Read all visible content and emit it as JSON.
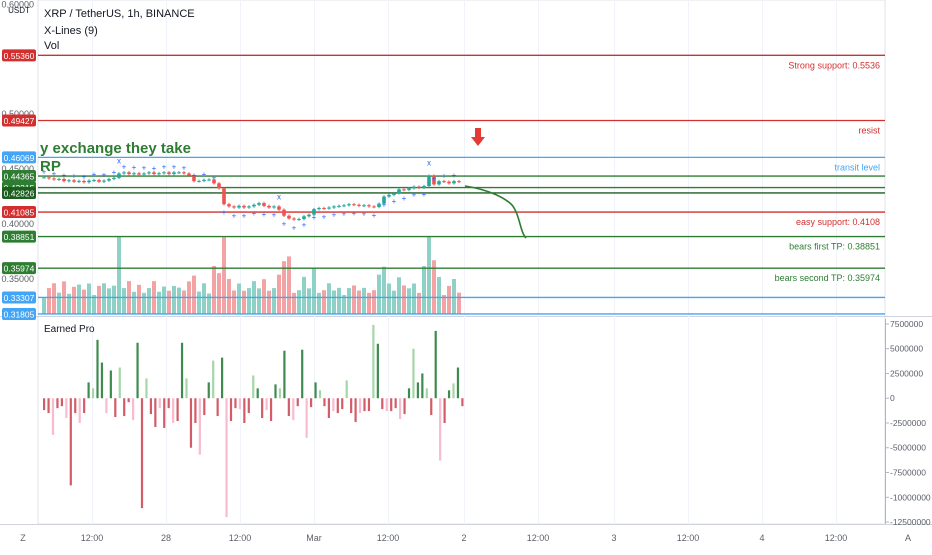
{
  "header": {
    "symbol_line": "XRP / TetherUS, 1h, BINANCE",
    "indicator_1": "X-Lines (9)",
    "indicator_2": "Vol",
    "overlay_text_1": "y exchange they take",
    "overlay_text_2": "RP",
    "currency_label": "USDT"
  },
  "colors": {
    "up": "#26a69a",
    "down": "#ef5350",
    "up_dark": "#3f8b4f",
    "down_dark": "#d25c68",
    "vol_up": "#8fd1c6",
    "vol_down": "#f3a3a3",
    "red_line": "#d32f2f",
    "green_line": "#2e7d32",
    "blue_line": "#42a5f5",
    "axis_text": "#5d606b"
  },
  "chart_data": [
    {
      "type": "candlestick",
      "title": "XRP / TetherUS, 1h, BINANCE",
      "y_axis_labels": [
        "0.60000",
        "0.50000",
        "0.45000",
        "0.40000",
        "0.35000"
      ],
      "x_axis_labels": [
        "12:00",
        "28",
        "12:00",
        "Mar",
        "12:00",
        "2",
        "12:00",
        "3",
        "12:00",
        "4",
        "12:00"
      ],
      "ylim": [
        0.318,
        0.604
      ],
      "price_levels": [
        {
          "price": 0.5536,
          "label": "0.55360",
          "color": "#d32f2f",
          "text": "Strong support: 0.5536"
        },
        {
          "price": 0.49427,
          "label": "0.49427",
          "color": "#d32f2f",
          "text": "resist"
        },
        {
          "price": 0.46069,
          "label": "0.46069",
          "color": "#42a5f5",
          "text": "transit level"
        },
        {
          "price": 0.44365,
          "label": "0.44365",
          "color": "#2e7d32",
          "text": ""
        },
        {
          "price": 0.43315,
          "label": "0.43315",
          "color": "#2e7d32",
          "text": ""
        },
        {
          "price": 0.42826,
          "label": "0.42826",
          "color": "#1b5e20",
          "text": ""
        },
        {
          "price": 0.41085,
          "label": "0.41085",
          "color": "#d32f2f",
          "text": "easy support: 0.4108"
        },
        {
          "price": 0.38851,
          "label": "0.38851",
          "color": "#2e7d32",
          "text": "bears first TP: 0.38851"
        },
        {
          "price": 0.35974,
          "label": "0.35974",
          "color": "#2e7d32",
          "text": "bears second TP: 0.35974"
        },
        {
          "price": 0.33307,
          "label": "0.33307",
          "color": "#42a5f5",
          "text": ""
        },
        {
          "price": 0.31805,
          "label": "0.31805",
          "color": "#42a5f5",
          "text": ""
        }
      ],
      "series": [
        {
          "name": "",
          "close": [
            0.4425,
            0.4415,
            0.4405,
            0.441,
            0.439,
            0.4398,
            0.4385,
            0.4392,
            0.438,
            0.4395,
            0.44,
            0.4385,
            0.4395,
            0.441,
            0.442,
            0.446,
            0.447,
            0.4455,
            0.4462,
            0.445,
            0.446,
            0.447,
            0.4455,
            0.4462,
            0.447,
            0.4455,
            0.447,
            0.447,
            0.446,
            0.444,
            0.439,
            0.4392,
            0.4402,
            0.4405,
            0.437,
            0.4325,
            0.418,
            0.416,
            0.415,
            0.4165,
            0.415,
            0.416,
            0.4175,
            0.419,
            0.4165,
            0.415,
            0.416,
            0.413,
            0.4075,
            0.405,
            0.404,
            0.4045,
            0.407,
            0.4085,
            0.4135,
            0.4145,
            0.414,
            0.415,
            0.416,
            0.4165,
            0.417,
            0.418,
            0.4175,
            0.4165,
            0.417,
            0.416,
            0.4155,
            0.4185,
            0.425,
            0.4265,
            0.428,
            0.4315,
            0.431,
            0.4325,
            0.434,
            0.433,
            0.4345,
            0.444,
            0.436,
            0.439,
            0.4385,
            0.437,
            0.439,
            0.4385
          ]
        }
      ]
    },
    {
      "type": "bar",
      "title": "Earned Pro",
      "y_axis_labels": [
        "7500000",
        "5000000",
        "2500000",
        "0",
        "-2500000",
        "-5000000",
        "-7500000",
        "-10000000",
        "-12500000"
      ],
      "ylim": [
        -12700000,
        8000000
      ],
      "series": [
        {
          "name": "",
          "values": [
            -1200000,
            -1500000,
            -3700000,
            -1000000,
            -800000,
            -2000000,
            -8800000,
            -1500000,
            -2500000,
            -1500000,
            1600000,
            1000000,
            5900000,
            3600000,
            -1500000,
            2800000,
            -1900000,
            3100000,
            -1800000,
            -400000,
            -2200000,
            5600000,
            -11100000,
            2000000,
            -1600000,
            -2900000,
            -1000000,
            -3000000,
            -1000000,
            -2500000,
            -2300000,
            5600000,
            2000000,
            -5000000,
            -2500000,
            -5700000,
            -1700000,
            1600000,
            3800000,
            -1800000,
            4100000,
            -12000000,
            -2300000,
            -1000000,
            -1100000,
            -2500000,
            -1500000,
            2300000,
            1000000,
            -2000000,
            -1200000,
            -2300000,
            1400000,
            1000000,
            4800000,
            -1800000,
            -2200000,
            -800000,
            4900000,
            -4000000,
            -900000,
            1600000,
            800000,
            -800000,
            -2000000,
            -1300000,
            -1500000,
            -1100000,
            1800000,
            -1500000,
            -2400000,
            -1500000,
            -1300000,
            -1300000,
            7400000,
            5500000,
            -1100000,
            -1300000,
            -1300000,
            -1000000,
            -2100000,
            -1600000,
            1000000,
            5000000,
            1600000,
            2500000,
            1000000,
            -1700000,
            6800000,
            -6300000,
            -2500000,
            800000,
            1500000,
            3100000,
            -800000
          ]
        }
      ]
    }
  ]
}
